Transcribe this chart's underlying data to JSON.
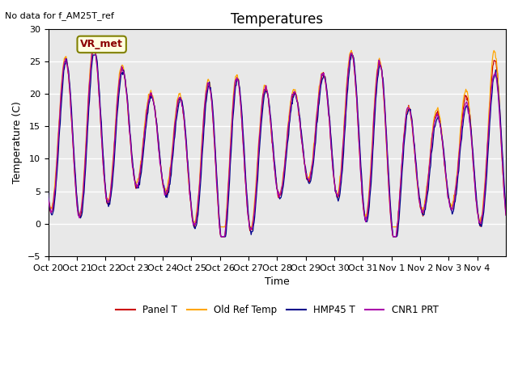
{
  "title": "Temperatures",
  "ylabel": "Temperature (C)",
  "xlabel": "Time",
  "ylim": [
    -5,
    30
  ],
  "no_data_text": "No data for f_AM25T_ref",
  "vr_met_label": "VR_met",
  "background_color": "#e8e8e8",
  "grid_color": "white",
  "line_colors": {
    "panel": "#cc0000",
    "old_ref": "#ffa500",
    "hmp45": "#00008b",
    "cnr1": "#aa00aa"
  },
  "legend_labels": [
    "Panel T",
    "Old Ref Temp",
    "HMP45 T",
    "CNR1 PRT"
  ],
  "xtick_labels": [
    "Oct 20",
    "Oct 21",
    "Oct 22",
    "Oct 23",
    "Oct 24",
    "Oct 25",
    "Oct 26",
    "Oct 27",
    "Oct 28",
    "Oct 29",
    "Oct 30",
    "Oct 31",
    "Nov 1",
    "Nov 2",
    "Nov 3",
    "Nov 4"
  ],
  "ytick_values": [
    -5,
    0,
    5,
    10,
    15,
    20,
    25,
    30
  ],
  "n_days": 16
}
